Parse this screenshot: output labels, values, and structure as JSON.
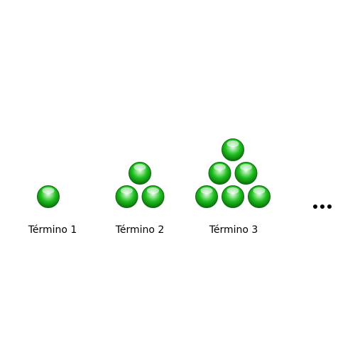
{
  "figure": {
    "ball_color": "#1fbf1f",
    "ball_dark": "#0b6e0b",
    "ball_highlight": "#eaffea",
    "terms": [
      {
        "label": "Término 1",
        "rows": [
          1
        ]
      },
      {
        "label": "Término 2",
        "rows": [
          1,
          2
        ]
      },
      {
        "label": "Término 3",
        "rows": [
          1,
          2,
          3
        ]
      }
    ],
    "continuation": "..."
  }
}
